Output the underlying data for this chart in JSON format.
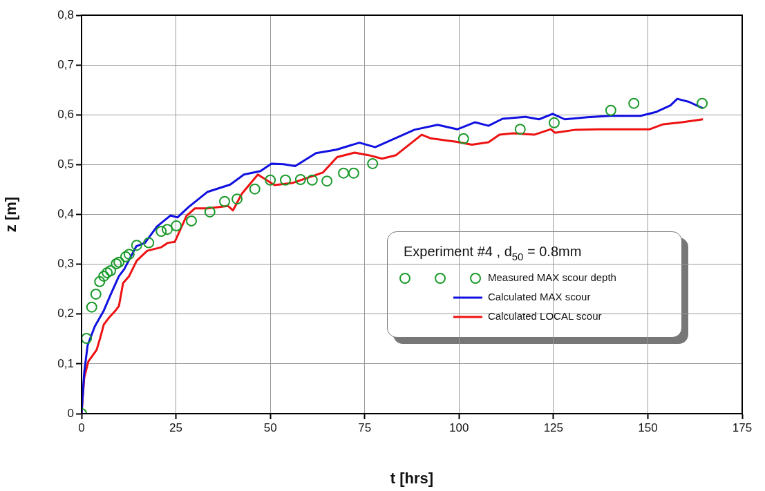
{
  "chart_data": {
    "type": "line",
    "xlabel": "t [hrs]",
    "ylabel": "z [m]",
    "legend_title": "Experiment #4 , d$_{50}$ = 0.8mm",
    "xlim": [
      0,
      175
    ],
    "xticks": [
      0,
      25,
      50,
      75,
      100,
      125,
      150,
      175
    ],
    "ylim": [
      0,
      0.8
    ],
    "yticks": [
      0,
      {
        "value": 0.1,
        "label": "0,1"
      },
      {
        "value": 0.2,
        "label": "0,2"
      },
      {
        "value": 0.3,
        "label": "0,3"
      },
      {
        "value": 0.4,
        "label": "0,4"
      },
      {
        "value": 0.5,
        "label": "0,5"
      },
      {
        "value": 0.6,
        "label": "0,6"
      },
      {
        "value": 0.7,
        "label": "0,7"
      },
      {
        "value": 0.8,
        "label": "0,8"
      }
    ],
    "grid": true,
    "legend": "right",
    "series": [
      {
        "name": "Measured MAX scour depth",
        "type": "scatter",
        "marker": "circle",
        "color": "#1a9a2a",
        "x": [
          0,
          1.3,
          2.7,
          3.8,
          4.8,
          5.9,
          6.8,
          7.7,
          9.2,
          9.9,
          11.7,
          12.6,
          14.6,
          17.8,
          21.1,
          22.7,
          25.1,
          29.1,
          34.0,
          37.9,
          41.2,
          45.9,
          50.0,
          54.0,
          58.0,
          61.1,
          65.0,
          69.4,
          72.1,
          77.1,
          101.2,
          116.2,
          125.2,
          140.2,
          146.3,
          164.4
        ],
        "values": [
          0,
          0.151,
          0.214,
          0.24,
          0.265,
          0.276,
          0.283,
          0.287,
          0.301,
          0.304,
          0.315,
          0.32,
          0.338,
          0.343,
          0.366,
          0.37,
          0.377,
          0.387,
          0.405,
          0.426,
          0.431,
          0.451,
          0.469,
          0.469,
          0.47,
          0.469,
          0.467,
          0.483,
          0.483,
          0.502,
          0.552,
          0.571,
          0.584,
          0.609,
          0.623,
          0.623
        ]
      },
      {
        "name": "Calculated MAX scour",
        "marker": "none",
        "line_style": "solid",
        "color": "#1010e0",
        "x": [
          0,
          0.7,
          1.6,
          3.5,
          5.9,
          7.7,
          9.9,
          11.3,
          14.5,
          16.8,
          20.0,
          23.6,
          25.4,
          28.4,
          33.3,
          39.4,
          43.0,
          47.4,
          50.3,
          53.5,
          56.6,
          62.1,
          67.5,
          73.6,
          77.8,
          88.2,
          94.3,
          99.6,
          104.2,
          107.8,
          111.5,
          117.5,
          121.2,
          124.8,
          128.0,
          134.0,
          140.0,
          148.1,
          152.3,
          156.0,
          157.8,
          160.9,
          164.6
        ],
        "values": [
          0,
          0.082,
          0.137,
          0.175,
          0.207,
          0.239,
          0.276,
          0.29,
          0.336,
          0.343,
          0.376,
          0.398,
          0.394,
          0.415,
          0.445,
          0.46,
          0.48,
          0.487,
          0.502,
          0.501,
          0.497,
          0.523,
          0.53,
          0.544,
          0.535,
          0.57,
          0.58,
          0.571,
          0.585,
          0.578,
          0.592,
          0.596,
          0.591,
          0.602,
          0.591,
          0.595,
          0.598,
          0.598,
          0.606,
          0.619,
          0.632,
          0.626,
          0.613
        ]
      },
      {
        "name": "Calculated LOCAL scour",
        "marker": "none",
        "line_style": "solid",
        "color": "#ee1111",
        "x": [
          0,
          0.7,
          1.8,
          4.0,
          4.9,
          5.9,
          7.3,
          9.0,
          9.9,
          11.0,
          12.6,
          14.6,
          17.4,
          21.1,
          22.9,
          24.7,
          27.8,
          30.0,
          33.3,
          38.8,
          40.1,
          42.5,
          46.7,
          51.1,
          55.8,
          63.9,
          67.7,
          72.3,
          76.0,
          79.6,
          83.3,
          90.1,
          92.4,
          99.2,
          103.4,
          107.8,
          110.7,
          114.4,
          119.9,
          124.3,
          125.4,
          130.9,
          137.1,
          150.5,
          154.1,
          159.1,
          164.6
        ],
        "values": [
          0,
          0.072,
          0.105,
          0.128,
          0.151,
          0.179,
          0.193,
          0.207,
          0.216,
          0.262,
          0.276,
          0.307,
          0.327,
          0.334,
          0.343,
          0.345,
          0.397,
          0.412,
          0.412,
          0.417,
          0.408,
          0.442,
          0.48,
          0.459,
          0.463,
          0.484,
          0.515,
          0.524,
          0.519,
          0.512,
          0.519,
          0.56,
          0.553,
          0.546,
          0.54,
          0.545,
          0.56,
          0.563,
          0.56,
          0.571,
          0.564,
          0.57,
          0.571,
          0.571,
          0.581,
          0.585,
          0.591
        ]
      }
    ]
  }
}
